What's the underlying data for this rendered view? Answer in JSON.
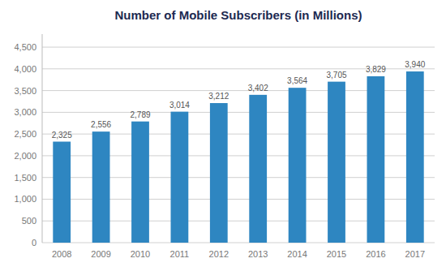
{
  "chart_data": {
    "type": "bar",
    "title": "Number of Mobile Subscribers (in Millions)",
    "categories": [
      "2008",
      "2009",
      "2010",
      "2011",
      "2012",
      "2013",
      "2014",
      "2015",
      "2016",
      "2017"
    ],
    "values": [
      2325,
      2556,
      2789,
      3014,
      3212,
      3402,
      3564,
      3705,
      3829,
      3940
    ],
    "value_labels": [
      "2,325",
      "2,556",
      "2,789",
      "3,014",
      "3,212",
      "3,402",
      "3,564",
      "3,705",
      "3,829",
      "3,940"
    ],
    "data_labels": true,
    "color": "#2e86c1",
    "ylim": [
      0,
      4800
    ],
    "yticks": [
      0,
      500,
      {
        "value": 1000,
        "label": "1,000"
      },
      {
        "value": 1500,
        "label": "1,500"
      },
      {
        "value": 2000,
        "label": "2,000"
      },
      {
        "value": 2500,
        "label": "2,500"
      },
      {
        "value": 3000,
        "label": "3,000"
      },
      {
        "value": 3500,
        "label": "3,500"
      },
      {
        "value": 4000,
        "label": "4,000"
      },
      {
        "value": 4500,
        "label": "4,500"
      }
    ],
    "grid": true
  }
}
